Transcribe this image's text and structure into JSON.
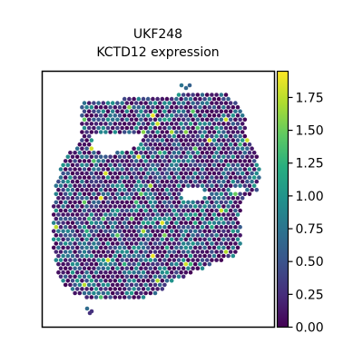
{
  "chart_data": {
    "type": "scatter",
    "title": "UKF248",
    "subtitle": "KCTD12 expression",
    "xlabel": "",
    "ylabel": "",
    "colorbar": {
      "colormap": "viridis",
      "range": [
        0,
        1.95
      ],
      "ticks": [
        "0.00",
        "0.25",
        "0.50",
        "0.75",
        "1.00",
        "1.25",
        "1.50",
        "1.75"
      ],
      "tick_values": [
        0,
        0.25,
        0.5,
        0.75,
        1.0,
        1.25,
        1.5,
        1.75
      ]
    },
    "axes": {
      "ticks_visible": false,
      "grid": false
    },
    "colors": {
      "frame": "#000000",
      "background": "#ffffff"
    }
  }
}
